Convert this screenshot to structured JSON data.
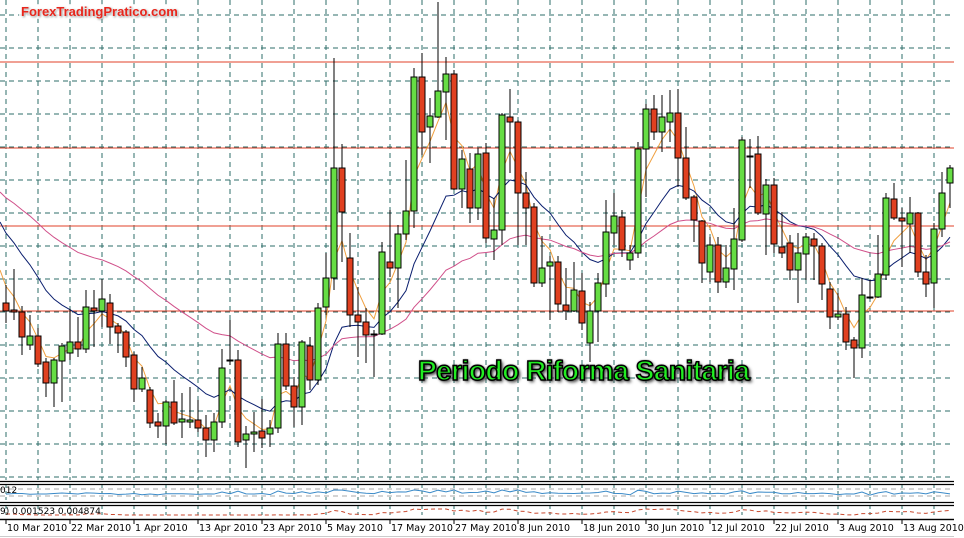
{
  "watermark": "ForexTradingPratico.com",
  "annotation": "Periodo Riforma Sanitaria",
  "indicator_panels": [
    {
      "label": "012"
    },
    {
      "label": "9) 0.001523 0.004874"
    }
  ],
  "chart_data": {
    "type": "candlestick",
    "title": "",
    "timeframe_note": "daily",
    "x_tick_labels": [
      "10 Mar 2010",
      "22 Mar 2010",
      "1 Apr 2010",
      "13 Apr 2010",
      "23 Apr 2010",
      "5 May 2010",
      "17 May 2010",
      "27 May 2010",
      "8 Jun 2010",
      "18 Jun 2010",
      "30 Jun 2010",
      "12 Jul 2010",
      "22 Jul 2010",
      "3 Aug 2010",
      "13 Aug 2010"
    ],
    "price_units": "relative (no price axis visible)",
    "candles_ohlc": [
      [
        197,
        215,
        177,
        189
      ],
      [
        190,
        231,
        180,
        188
      ],
      [
        188,
        194,
        145,
        163
      ],
      [
        155,
        185,
        150,
        164
      ],
      [
        164,
        172,
        133,
        136
      ],
      [
        138,
        142,
        103,
        117
      ],
      [
        117,
        142,
        93,
        140
      ],
      [
        139,
        157,
        98,
        154
      ],
      [
        147,
        191,
        140,
        158
      ],
      [
        158,
        183,
        143,
        151
      ],
      [
        151,
        210,
        147,
        193
      ],
      [
        192,
        210,
        153,
        189
      ],
      [
        189,
        221,
        173,
        201
      ],
      [
        197,
        206,
        156,
        173
      ],
      [
        174,
        177,
        147,
        167
      ],
      [
        168,
        170,
        133,
        143
      ],
      [
        145,
        148,
        98,
        111
      ],
      [
        111,
        133,
        108,
        122
      ],
      [
        110,
        113,
        72,
        77
      ],
      [
        78,
        87,
        62,
        74
      ],
      [
        74,
        100,
        56,
        98
      ],
      [
        98,
        120,
        75,
        77
      ],
      [
        78,
        107,
        62,
        81
      ],
      [
        78,
        113,
        72,
        80
      ],
      [
        80,
        100,
        68,
        72
      ],
      [
        72,
        85,
        43,
        60
      ],
      [
        60,
        87,
        48,
        78
      ],
      [
        78,
        151,
        72,
        132
      ],
      [
        140,
        180,
        135,
        140
      ],
      [
        140,
        150,
        53,
        58
      ],
      [
        60,
        74,
        32,
        66
      ],
      [
        66,
        88,
        48,
        68
      ],
      [
        69,
        101,
        52,
        62
      ],
      [
        66,
        80,
        53,
        72
      ],
      [
        72,
        167,
        67,
        156
      ],
      [
        156,
        167,
        110,
        114
      ],
      [
        114,
        123,
        73,
        93
      ],
      [
        93,
        160,
        75,
        158
      ],
      [
        154,
        163,
        110,
        120
      ],
      [
        120,
        197,
        115,
        192
      ],
      [
        193,
        247,
        185,
        222
      ],
      [
        222,
        442,
        210,
        332
      ],
      [
        332,
        356,
        238,
        288
      ],
      [
        242,
        267,
        173,
        185
      ],
      [
        185,
        213,
        143,
        178
      ],
      [
        178,
        192,
        137,
        165
      ],
      [
        165,
        170,
        123,
        166
      ],
      [
        166,
        258,
        165,
        248
      ],
      [
        238,
        290,
        223,
        232
      ],
      [
        232,
        275,
        192,
        266
      ],
      [
        266,
        340,
        260,
        289
      ],
      [
        289,
        432,
        272,
        423
      ],
      [
        423,
        447,
        345,
        368
      ],
      [
        373,
        402,
        337,
        384
      ],
      [
        383,
        498,
        382,
        409
      ],
      [
        408,
        443,
        360,
        426
      ],
      [
        426,
        430,
        310,
        311
      ],
      [
        311,
        350,
        292,
        341
      ],
      [
        331,
        347,
        277,
        292
      ],
      [
        292,
        352,
        280,
        346
      ],
      [
        347,
        357,
        257,
        262
      ],
      [
        261,
        302,
        240,
        270
      ],
      [
        270,
        387,
        255,
        385
      ],
      [
        383,
        411,
        327,
        378
      ],
      [
        378,
        380,
        255,
        307
      ],
      [
        307,
        328,
        255,
        292
      ],
      [
        293,
        297,
        213,
        217
      ],
      [
        217,
        264,
        213,
        232
      ],
      [
        234,
        244,
        180,
        238
      ],
      [
        238,
        244,
        188,
        196
      ],
      [
        195,
        232,
        180,
        189
      ],
      [
        189,
        238,
        188,
        210
      ],
      [
        209,
        227,
        170,
        177
      ],
      [
        157,
        198,
        138,
        189
      ],
      [
        189,
        227,
        158,
        217
      ],
      [
        216,
        300,
        203,
        268
      ],
      [
        267,
        307,
        255,
        284
      ],
      [
        283,
        290,
        243,
        250
      ],
      [
        240,
        255,
        230,
        247
      ],
      [
        247,
        358,
        242,
        351
      ],
      [
        351,
        396,
        303,
        391
      ],
      [
        391,
        405,
        360,
        368
      ],
      [
        368,
        405,
        348,
        383
      ],
      [
        378,
        410,
        358,
        387
      ],
      [
        387,
        411,
        313,
        342
      ],
      [
        342,
        373,
        300,
        302
      ],
      [
        303,
        305,
        258,
        280
      ],
      [
        279,
        280,
        217,
        237
      ],
      [
        228,
        263,
        218,
        255
      ],
      [
        255,
        263,
        207,
        218
      ],
      [
        218,
        255,
        212,
        232
      ],
      [
        231,
        292,
        210,
        261
      ],
      [
        260,
        363,
        258,
        360
      ],
      [
        344,
        361,
        312,
        344
      ],
      [
        346,
        364,
        285,
        287
      ],
      [
        286,
        321,
        245,
        315
      ],
      [
        315,
        322,
        247,
        256
      ],
      [
        253,
        288,
        242,
        247
      ],
      [
        257,
        265,
        220,
        230
      ],
      [
        230,
        267,
        197,
        247
      ],
      [
        246,
        267,
        220,
        263
      ],
      [
        261,
        267,
        220,
        254
      ],
      [
        254,
        257,
        200,
        216
      ],
      [
        211,
        218,
        171,
        183
      ],
      [
        183,
        207,
        180,
        186
      ],
      [
        186,
        193,
        150,
        158
      ],
      [
        160,
        163,
        122,
        152
      ],
      [
        152,
        222,
        142,
        205
      ],
      [
        203,
        220,
        201,
        203
      ],
      [
        203,
        265,
        202,
        226
      ],
      [
        225,
        307,
        220,
        302
      ],
      [
        301,
        317,
        280,
        282
      ],
      [
        282,
        292,
        233,
        279
      ],
      [
        276,
        303,
        247,
        287
      ],
      [
        287,
        288,
        223,
        228
      ],
      [
        228,
        245,
        203,
        216
      ],
      [
        217,
        277,
        192,
        271
      ],
      [
        271,
        328,
        263,
        307
      ],
      [
        317,
        335,
        292,
        332
      ]
    ],
    "moving_averages": [
      {
        "kind": "fast",
        "color": "#f0a040"
      },
      {
        "kind": "medium",
        "color": "#0a1e6e"
      },
      {
        "kind": "slow",
        "color": "#d0508a"
      }
    ],
    "horizontal_levels": [
      438,
      352,
      274,
      189
    ],
    "level_color": "#e0402a",
    "bull_color": "#66dd44",
    "bear_color": "#e04020",
    "grid": true
  }
}
